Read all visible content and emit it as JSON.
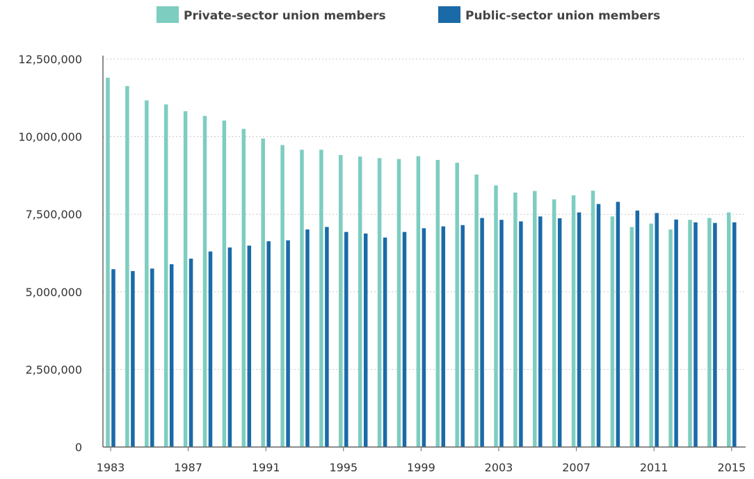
{
  "chart_data": {
    "type": "bar",
    "title": "",
    "xlabel": "",
    "ylabel": "",
    "ylim": [
      0,
      12500000
    ],
    "y_ticks": [
      "0",
      "2,500,000",
      "5,000,000",
      "7,500,000",
      "10,000,000",
      "12,500,000"
    ],
    "x_tick_labels": [
      "1983",
      "1987",
      "1991",
      "1995",
      "1999",
      "2003",
      "2007",
      "2011",
      "2015"
    ],
    "grid": "horizontal dotted",
    "legend_position": "top-center",
    "categories": [
      "1983",
      "1984",
      "1985",
      "1986",
      "1987",
      "1988",
      "1989",
      "1990",
      "1991",
      "1992",
      "1993",
      "1994",
      "1995",
      "1996",
      "1997",
      "1998",
      "1999",
      "2000",
      "2001",
      "2002",
      "2003",
      "2004",
      "2005",
      "2006",
      "2007",
      "2008",
      "2009",
      "2010",
      "2011",
      "2012",
      "2013",
      "2014",
      "2015"
    ],
    "series": [
      {
        "name": "Private-sector union members",
        "color": "#7dcdc0",
        "values": [
          11900000,
          11630000,
          11170000,
          11040000,
          10820000,
          10670000,
          10520000,
          10250000,
          9940000,
          9730000,
          9580000,
          9580000,
          9410000,
          9360000,
          9310000,
          9280000,
          9370000,
          9250000,
          9160000,
          8780000,
          8430000,
          8200000,
          8250000,
          7980000,
          8110000,
          8260000,
          7430000,
          7090000,
          7200000,
          7010000,
          7320000,
          7380000,
          7560000
        ]
      },
      {
        "name": "Public-sector union members",
        "color": "#1a6aa8",
        "values": [
          5730000,
          5670000,
          5750000,
          5890000,
          6070000,
          6300000,
          6430000,
          6490000,
          6630000,
          6660000,
          7010000,
          7090000,
          6930000,
          6880000,
          6750000,
          6930000,
          7050000,
          7110000,
          7150000,
          7380000,
          7320000,
          7270000,
          7430000,
          7370000,
          7560000,
          7830000,
          7900000,
          7620000,
          7540000,
          7330000,
          7240000,
          7220000,
          7240000
        ]
      }
    ]
  }
}
